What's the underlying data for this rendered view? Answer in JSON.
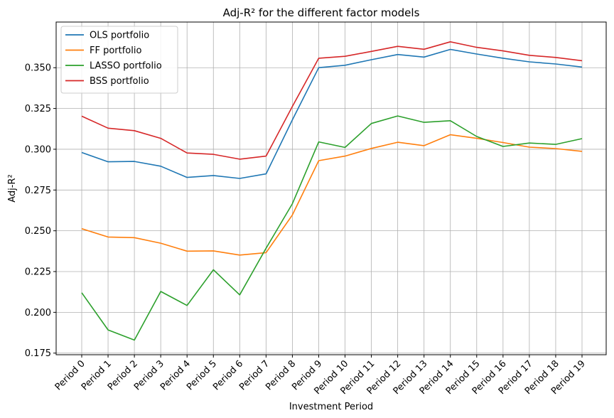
{
  "chart_data": {
    "type": "line",
    "title": "Adj-R² for the different factor models",
    "xlabel": "Investment Period",
    "ylabel": "Adj-R²",
    "grid": true,
    "legend_position": "top-left",
    "ylim": [
      0.174,
      0.378
    ],
    "y_ticks": [
      0.175,
      0.2,
      0.225,
      0.25,
      0.275,
      0.3,
      0.325,
      0.35
    ],
    "y_tick_labels": [
      "0.175",
      "0.200",
      "0.225",
      "0.250",
      "0.275",
      "0.300",
      "0.325",
      "0.350"
    ],
    "categories": [
      "Period 0",
      "Period 1",
      "Period 2",
      "Period 3",
      "Period 4",
      "Period 5",
      "Period 6",
      "Period 7",
      "Period 8",
      "Period 9",
      "Period 10",
      "Period 11",
      "Period 12",
      "Period 13",
      "Period 14",
      "Period 15",
      "Period 16",
      "Period 17",
      "Period 18",
      "Period 19"
    ],
    "series": [
      {
        "name": "OLS portfolio",
        "color": "#1f77b4",
        "values": [
          0.298,
          0.2923,
          0.2925,
          0.2896,
          0.2827,
          0.2839,
          0.2821,
          0.2849,
          0.318,
          0.35,
          0.3515,
          0.3549,
          0.3581,
          0.3565,
          0.3612,
          0.3584,
          0.3558,
          0.3536,
          0.3523,
          0.3504
        ]
      },
      {
        "name": "FF portfolio",
        "color": "#ff7f0e",
        "values": [
          0.2513,
          0.2462,
          0.2458,
          0.2424,
          0.2375,
          0.2377,
          0.2351,
          0.2366,
          0.2597,
          0.293,
          0.2958,
          0.3005,
          0.3043,
          0.3022,
          0.3089,
          0.3067,
          0.3041,
          0.3013,
          0.3004,
          0.2987
        ]
      },
      {
        "name": "LASSO portfolio",
        "color": "#2ca02c",
        "values": [
          0.212,
          0.1892,
          0.183,
          0.2128,
          0.2042,
          0.2261,
          0.2107,
          0.2393,
          0.2666,
          0.3045,
          0.3011,
          0.3158,
          0.3204,
          0.3165,
          0.3175,
          0.3078,
          0.3017,
          0.3038,
          0.303,
          0.3065
        ]
      },
      {
        "name": "BSS portfolio",
        "color": "#d62728",
        "values": [
          0.3203,
          0.3129,
          0.3114,
          0.3067,
          0.2977,
          0.2969,
          0.2939,
          0.2958,
          0.3262,
          0.3558,
          0.357,
          0.36,
          0.3631,
          0.3613,
          0.3659,
          0.3625,
          0.3603,
          0.3576,
          0.3563,
          0.3543
        ]
      }
    ]
  }
}
